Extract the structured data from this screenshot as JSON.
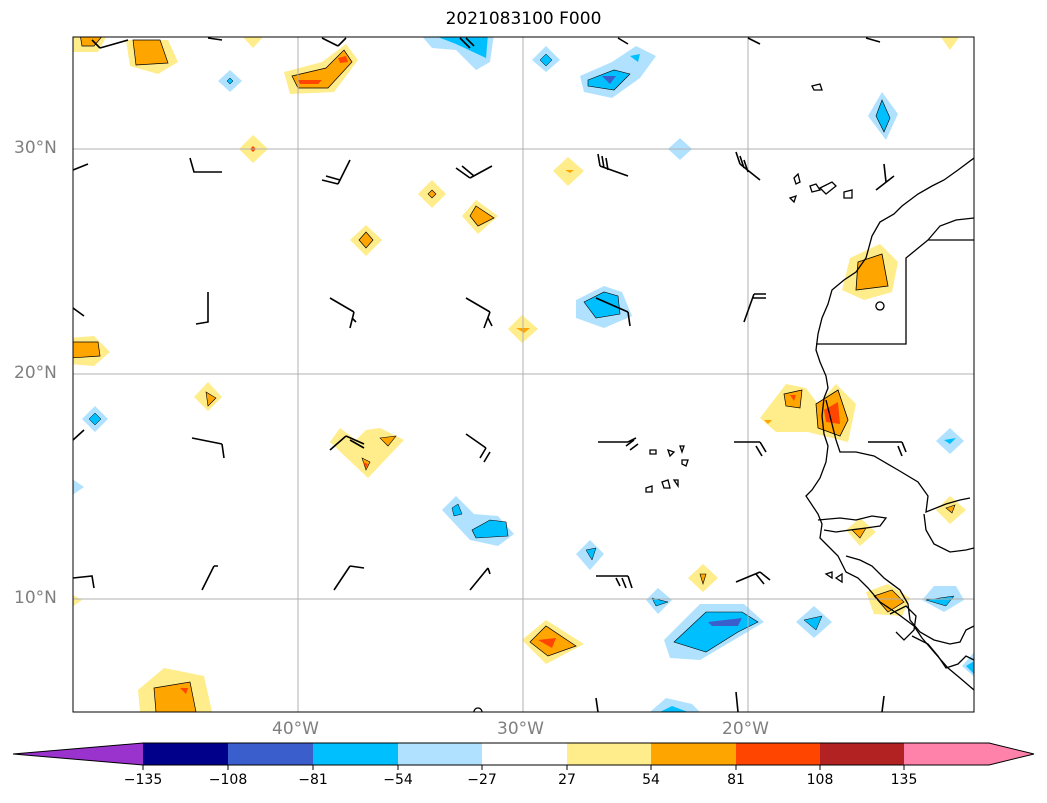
{
  "title": "2021083100 F000",
  "map": {
    "lat_range": [
      5,
      35
    ],
    "lon_range": [
      -50,
      -10
    ],
    "lat_labels": [
      "30°N",
      "20°N",
      "10°N"
    ],
    "lon_labels": [
      "40°W",
      "30°W",
      "20°W"
    ],
    "grid": true
  },
  "colorbar": {
    "ticks": [
      "−135",
      "−108",
      "−81",
      "−54",
      "−27",
      "27",
      "54",
      "81",
      "108",
      "135"
    ],
    "colors": [
      "#9a32cd",
      "#00008b",
      "#3a5fcd",
      "#00bfff",
      "#b0e2ff",
      "#ffffff",
      "#ffec8b",
      "#ffa500",
      "#ff4500",
      "#b22222",
      "#ff82ab"
    ],
    "extend": "both"
  },
  "colors": {
    "neg_light": "#b0e2ff",
    "neg_mid": "#00bfff",
    "neg_dark": "#3a5fcd",
    "pos_light": "#ffec8b",
    "pos_mid": "#ffa500",
    "pos_dark": "#ff4500",
    "grid": "#b0b0b0",
    "coast": "#000000"
  }
}
